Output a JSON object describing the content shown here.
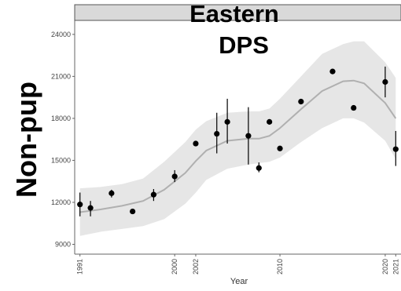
{
  "chart_data": {
    "type": "scatter",
    "title_line1": "Eastern",
    "title_line2": "DPS",
    "ylabel": "Non-pup",
    "xlabel": "Year",
    "xlim": [
      1990.5,
      2021.5
    ],
    "ylim": [
      8300,
      25000
    ],
    "x_ticks": [
      "1991",
      "2000",
      "2002",
      "2010",
      "2020",
      "2021"
    ],
    "y_ticks": [
      "9000",
      "12000",
      "15000",
      "18000",
      "21000",
      "24000"
    ],
    "grid": false,
    "points": [
      {
        "x": 1991,
        "y": 11850,
        "lo": 11000,
        "hi": 12700
      },
      {
        "x": 1992,
        "y": 11600,
        "lo": 11000,
        "hi": 12100
      },
      {
        "x": 1994,
        "y": 12650,
        "lo": 12350,
        "hi": 12900
      },
      {
        "x": 1996,
        "y": 11350,
        "lo": 11350,
        "hi": 11350
      },
      {
        "x": 1998,
        "y": 12550,
        "lo": 12100,
        "hi": 12950
      },
      {
        "x": 2000,
        "y": 13850,
        "lo": 13450,
        "hi": 14300
      },
      {
        "x": 2002,
        "y": 16200,
        "lo": 16200,
        "hi": 16200
      },
      {
        "x": 2004,
        "y": 16900,
        "lo": 15500,
        "hi": 18400
      },
      {
        "x": 2005,
        "y": 17750,
        "lo": 16200,
        "hi": 19400
      },
      {
        "x": 2007,
        "y": 16750,
        "lo": 14700,
        "hi": 18800
      },
      {
        "x": 2008,
        "y": 14450,
        "lo": 14150,
        "hi": 14850
      },
      {
        "x": 2009,
        "y": 17750,
        "lo": 17750,
        "hi": 17750
      },
      {
        "x": 2010,
        "y": 15850,
        "lo": 15850,
        "hi": 15850
      },
      {
        "x": 2012,
        "y": 19200,
        "lo": 19200,
        "hi": 19200
      },
      {
        "x": 2015,
        "y": 21350,
        "lo": 21350,
        "hi": 21350
      },
      {
        "x": 2017,
        "y": 18750,
        "lo": 18750,
        "hi": 18750
      },
      {
        "x": 2020,
        "y": 20600,
        "lo": 19500,
        "hi": 21700
      },
      {
        "x": 2021,
        "y": 15800,
        "lo": 14600,
        "hi": 17100
      }
    ],
    "trend": {
      "x": [
        1991,
        1993,
        1995,
        1997,
        1999,
        2001,
        2002,
        2003,
        2005,
        2007,
        2008,
        2009,
        2010,
        2012,
        2014,
        2016,
        2017,
        2018,
        2020,
        2021
      ],
      "y": [
        11300,
        11500,
        11750,
        12100,
        12900,
        14100,
        14950,
        15700,
        16400,
        16550,
        16550,
        16750,
        17300,
        18650,
        19950,
        20650,
        20700,
        20500,
        19100,
        18000
      ],
      "lower": [
        9600,
        9900,
        10100,
        10300,
        10800,
        11900,
        12700,
        13600,
        14400,
        14700,
        14800,
        14900,
        15200,
        16300,
        17300,
        18000,
        18000,
        17700,
        16400,
        15100
      ],
      "upper": [
        13000,
        13100,
        13300,
        13700,
        14900,
        16300,
        17200,
        17800,
        18400,
        18500,
        18500,
        18700,
        19400,
        21000,
        22600,
        23300,
        23500,
        23500,
        22000,
        20900
      ]
    },
    "colors": {
      "band": "#e6e6e6",
      "trend_line": "#b0b0b0",
      "points": "#000000",
      "strip": "#d9d9d9"
    }
  }
}
